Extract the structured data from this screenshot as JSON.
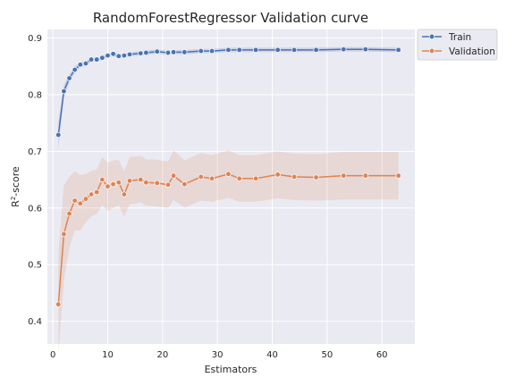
{
  "chart_data": {
    "type": "line",
    "title": "RandomForestRegressor Validation curve",
    "xlabel": "Estimators",
    "ylabel_main": "R",
    "ylabel_sup": "2",
    "ylabel_rest": "-score",
    "xlim": [
      -1,
      66
    ],
    "ylim": [
      0.36,
      0.915
    ],
    "xticks": [
      0,
      10,
      20,
      30,
      40,
      50,
      60
    ],
    "yticks": [
      0.4,
      0.5,
      0.6,
      0.7,
      0.8,
      0.9
    ],
    "grid": true,
    "legend_position": "outside-top-right",
    "x": [
      1,
      2,
      3,
      4,
      5,
      6,
      7,
      8,
      9,
      10,
      11,
      12,
      13,
      14,
      16,
      17,
      19,
      21,
      22,
      24,
      27,
      29,
      32,
      34,
      37,
      41,
      44,
      48,
      53,
      57,
      63
    ],
    "series": [
      {
        "name": "Train",
        "color": "#4c72b0",
        "values": [
          0.729,
          0.806,
          0.829,
          0.844,
          0.853,
          0.855,
          0.862,
          0.862,
          0.865,
          0.869,
          0.872,
          0.868,
          0.869,
          0.871,
          0.873,
          0.874,
          0.876,
          0.874,
          0.875,
          0.875,
          0.877,
          0.877,
          0.879,
          0.879,
          0.879,
          0.879,
          0.879,
          0.879,
          0.88,
          0.88,
          0.879
        ],
        "band_lower": [
          0.705,
          0.794,
          0.822,
          0.838,
          0.848,
          0.851,
          0.858,
          0.858,
          0.861,
          0.865,
          0.868,
          0.864,
          0.865,
          0.867,
          0.869,
          0.87,
          0.872,
          0.87,
          0.871,
          0.871,
          0.873,
          0.873,
          0.875,
          0.875,
          0.875,
          0.875,
          0.875,
          0.875,
          0.876,
          0.876,
          0.875
        ],
        "band_upper": [
          0.753,
          0.818,
          0.836,
          0.85,
          0.858,
          0.859,
          0.866,
          0.866,
          0.869,
          0.873,
          0.876,
          0.872,
          0.873,
          0.875,
          0.877,
          0.878,
          0.88,
          0.878,
          0.879,
          0.879,
          0.881,
          0.881,
          0.883,
          0.883,
          0.883,
          0.883,
          0.883,
          0.883,
          0.884,
          0.884,
          0.883
        ]
      },
      {
        "name": "Validation",
        "color": "#dd8452",
        "values": [
          0.43,
          0.554,
          0.59,
          0.613,
          0.608,
          0.616,
          0.624,
          0.628,
          0.65,
          0.638,
          0.642,
          0.645,
          0.624,
          0.648,
          0.65,
          0.645,
          0.644,
          0.641,
          0.657,
          0.642,
          0.655,
          0.652,
          0.66,
          0.652,
          0.652,
          0.659,
          0.655,
          0.654,
          0.657,
          0.657,
          0.657
        ],
        "band_lower": [
          0.34,
          0.47,
          0.53,
          0.56,
          0.56,
          0.575,
          0.585,
          0.59,
          0.605,
          0.595,
          0.6,
          0.605,
          0.585,
          0.606,
          0.61,
          0.604,
          0.603,
          0.6,
          0.614,
          0.601,
          0.613,
          0.611,
          0.618,
          0.611,
          0.611,
          0.617,
          0.614,
          0.613,
          0.615,
          0.615,
          0.615
        ],
        "band_upper": [
          0.52,
          0.64,
          0.655,
          0.665,
          0.658,
          0.66,
          0.665,
          0.668,
          0.69,
          0.68,
          0.684,
          0.685,
          0.665,
          0.69,
          0.692,
          0.686,
          0.685,
          0.682,
          0.702,
          0.684,
          0.697,
          0.693,
          0.702,
          0.693,
          0.693,
          0.7,
          0.696,
          0.695,
          0.699,
          0.699,
          0.699
        ]
      }
    ]
  }
}
